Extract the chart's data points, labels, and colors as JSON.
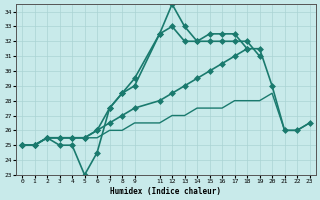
{
  "xlabel": "Humidex (Indice chaleur)",
  "ylabel": "",
  "bg_color": "#c8eaea",
  "grid_color": "#aad4d4",
  "line_color": "#1a7a6e",
  "xlim": [
    -0.5,
    23.5
  ],
  "ylim": [
    23,
    34.5
  ],
  "xticks": [
    0,
    1,
    2,
    3,
    4,
    5,
    6,
    7,
    8,
    9,
    11,
    12,
    13,
    14,
    15,
    16,
    17,
    18,
    19,
    20,
    21,
    22,
    23
  ],
  "yticks": [
    23,
    24,
    25,
    26,
    27,
    28,
    29,
    30,
    31,
    32,
    33,
    34
  ],
  "series": [
    {
      "x": [
        0,
        1,
        2,
        3,
        4,
        5,
        6,
        7,
        8,
        9,
        11,
        12,
        13,
        14,
        15,
        16,
        17,
        18,
        19,
        20,
        21,
        22,
        23
      ],
      "y": [
        25,
        25,
        25.5,
        25,
        25,
        23,
        24.5,
        27.5,
        28.5,
        29,
        32.5,
        34.5,
        33,
        32,
        32,
        32,
        32,
        32,
        31,
        null,
        null,
        null,
        null
      ],
      "marker": "D",
      "markersize": 3,
      "linewidth": 1.2
    },
    {
      "x": [
        0,
        1,
        2,
        3,
        4,
        5,
        6,
        7,
        8,
        9,
        11,
        12,
        13,
        14,
        15,
        16,
        17,
        18,
        19,
        20,
        21,
        22,
        23
      ],
      "y": [
        25,
        25,
        25.5,
        25.5,
        25.5,
        25.5,
        26,
        27.5,
        28.5,
        29.5,
        32.5,
        33,
        32,
        32,
        32.5,
        32.5,
        32.5,
        31.5,
        null,
        null,
        null,
        null,
        null
      ],
      "marker": "D",
      "markersize": 3,
      "linewidth": 1.2
    },
    {
      "x": [
        0,
        1,
        2,
        3,
        4,
        5,
        6,
        7,
        8,
        9,
        11,
        12,
        13,
        14,
        15,
        16,
        17,
        18,
        19,
        20,
        21,
        22,
        23
      ],
      "y": [
        25,
        25,
        25.5,
        25.5,
        25.5,
        25.5,
        26,
        26.5,
        27,
        27.5,
        28,
        28.5,
        29,
        29.5,
        30,
        30.5,
        31,
        31.5,
        31.5,
        29,
        26,
        26,
        26.5
      ],
      "marker": "D",
      "markersize": 3,
      "linewidth": 1.2
    },
    {
      "x": [
        0,
        1,
        2,
        3,
        4,
        5,
        6,
        7,
        8,
        9,
        11,
        12,
        13,
        14,
        15,
        16,
        17,
        18,
        19,
        20,
        21,
        22,
        23
      ],
      "y": [
        25,
        25,
        25.5,
        25.5,
        25.5,
        25.5,
        25.5,
        26,
        26,
        26.5,
        26.5,
        27,
        27,
        27.5,
        27.5,
        27.5,
        28,
        28,
        28,
        28.5,
        26,
        26,
        26.5
      ],
      "marker": null,
      "markersize": 0,
      "linewidth": 1.0
    }
  ]
}
